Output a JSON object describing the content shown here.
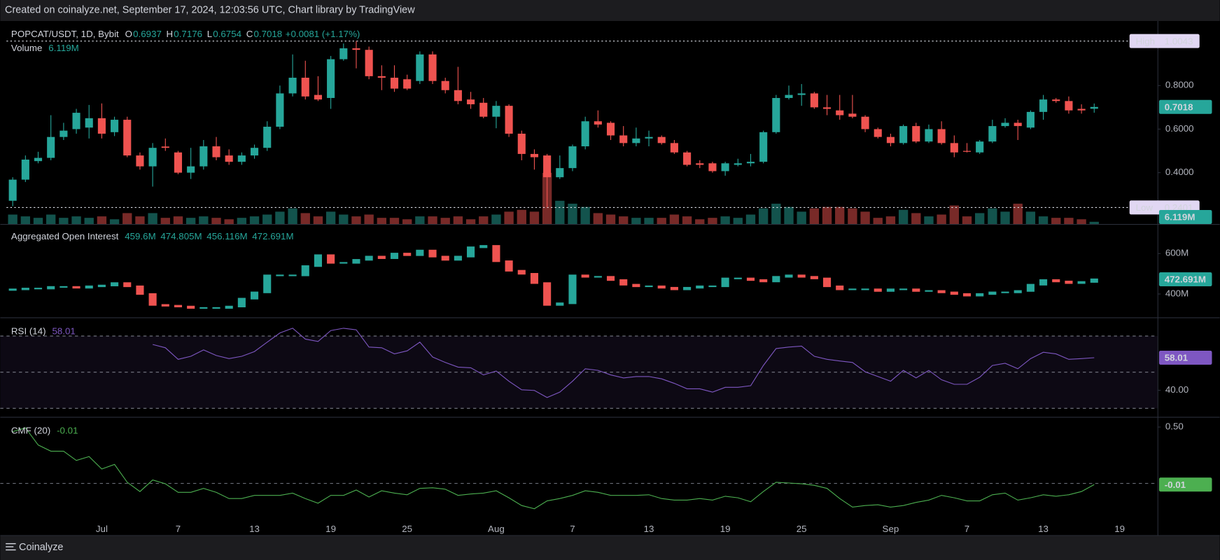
{
  "header": {
    "text": "Created on coinalyze.net, September 17, 2024, 12:03:56 UTC, Chart library by TradingView"
  },
  "footer": {
    "text": "Coinalyze"
  },
  "chart_data": [
    {
      "type": "candlestick",
      "title": "POPCAT/USDT, 1D, Bybit",
      "ohlc_letters": [
        "O",
        "H",
        "L",
        "C"
      ],
      "change_label": "+0.0081 (+1.17%)",
      "open": [
        0.271,
        0.368,
        0.453,
        0.468,
        0.564,
        0.6,
        0.607,
        0.65,
        0.586,
        0.643,
        0.479,
        0.429,
        0.52,
        0.493,
        0.4,
        0.429,
        0.521,
        0.479,
        0.45,
        0.479,
        0.514,
        0.611,
        0.764,
        0.836,
        0.757,
        0.743,
        0.921,
        0.971,
        0.964,
        0.843,
        0.836,
        0.829,
        0.821,
        0.943,
        0.821,
        0.779,
        0.736,
        0.721,
        0.657,
        0.707,
        0.579,
        0.486,
        0.479,
        0.379,
        0.421,
        0.521,
        0.636,
        0.629,
        0.571,
        0.536,
        0.557,
        0.564,
        0.536,
        0.493,
        0.443,
        0.443,
        0.407,
        0.436,
        0.443,
        0.45,
        0.586,
        0.743,
        0.757,
        0.764,
        0.7,
        0.686,
        0.671,
        0.657,
        0.6,
        0.564,
        0.536,
        0.614,
        0.543,
        0.6,
        0.536,
        0.5,
        0.493,
        0.543,
        0.614,
        0.629,
        0.607,
        0.679,
        0.736,
        0.729,
        0.693,
        0.6937
      ],
      "high": [
        0.379,
        0.479,
        0.496,
        0.664,
        0.629,
        0.693,
        0.711,
        0.718,
        0.657,
        0.657,
        0.493,
        0.536,
        0.557,
        0.5,
        0.514,
        0.55,
        0.564,
        0.507,
        0.493,
        0.529,
        0.636,
        0.8,
        0.943,
        0.914,
        0.843,
        0.936,
        0.993,
        1.0043,
        0.979,
        0.893,
        0.893,
        0.85,
        0.957,
        0.957,
        0.836,
        0.886,
        0.771,
        0.743,
        0.729,
        0.714,
        0.593,
        0.507,
        0.486,
        0.479,
        0.529,
        0.657,
        0.686,
        0.636,
        0.614,
        0.607,
        0.593,
        0.571,
        0.55,
        0.5,
        0.457,
        0.45,
        0.45,
        0.464,
        0.486,
        0.593,
        0.757,
        0.8,
        0.807,
        0.771,
        0.757,
        0.757,
        0.757,
        0.664,
        0.607,
        0.579,
        0.621,
        0.629,
        0.621,
        0.636,
        0.571,
        0.536,
        0.55,
        0.643,
        0.65,
        0.643,
        0.686,
        0.757,
        0.743,
        0.75,
        0.714,
        0.7176
      ],
      "low": [
        0.246,
        0.357,
        0.443,
        0.457,
        0.55,
        0.579,
        0.557,
        0.557,
        0.568,
        0.471,
        0.414,
        0.336,
        0.5,
        0.393,
        0.371,
        0.414,
        0.457,
        0.436,
        0.436,
        0.464,
        0.5,
        0.6,
        0.75,
        0.736,
        0.729,
        0.693,
        0.914,
        0.879,
        0.829,
        0.779,
        0.771,
        0.779,
        0.807,
        0.807,
        0.764,
        0.714,
        0.693,
        0.65,
        0.604,
        0.564,
        0.457,
        0.414,
        0.2401,
        0.371,
        0.407,
        0.507,
        0.607,
        0.55,
        0.521,
        0.521,
        0.521,
        0.529,
        0.486,
        0.429,
        0.421,
        0.4,
        0.386,
        0.429,
        0.429,
        0.443,
        0.579,
        0.736,
        0.707,
        0.693,
        0.664,
        0.643,
        0.65,
        0.586,
        0.557,
        0.521,
        0.529,
        0.536,
        0.536,
        0.529,
        0.471,
        0.493,
        0.486,
        0.536,
        0.607,
        0.55,
        0.6,
        0.643,
        0.721,
        0.671,
        0.671,
        0.6754
      ],
      "close": [
        0.368,
        0.46,
        0.468,
        0.564,
        0.593,
        0.675,
        0.65,
        0.579,
        0.643,
        0.479,
        0.429,
        0.514,
        0.514,
        0.4,
        0.429,
        0.521,
        0.471,
        0.45,
        0.479,
        0.514,
        0.611,
        0.764,
        0.836,
        0.75,
        0.736,
        0.921,
        0.971,
        0.964,
        0.843,
        0.836,
        0.786,
        0.786,
        0.943,
        0.821,
        0.779,
        0.729,
        0.714,
        0.657,
        0.707,
        0.579,
        0.486,
        0.471,
        0.379,
        0.421,
        0.521,
        0.636,
        0.621,
        0.571,
        0.536,
        0.557,
        0.564,
        0.536,
        0.493,
        0.436,
        0.436,
        0.407,
        0.443,
        0.443,
        0.45,
        0.586,
        0.743,
        0.757,
        0.764,
        0.7,
        0.693,
        0.664,
        0.657,
        0.6,
        0.564,
        0.536,
        0.614,
        0.543,
        0.6,
        0.536,
        0.493,
        0.496,
        0.543,
        0.614,
        0.629,
        0.614,
        0.679,
        0.736,
        0.729,
        0.686,
        0.686,
        0.7018
      ],
      "ylim": [
        0.1643,
        1.0929
      ],
      "yticks": [
        {
          "value": 0.8,
          "label": "0.8000"
        },
        {
          "value": 0.6,
          "label": "0.6000"
        },
        {
          "value": 0.4,
          "label": "0.4000"
        }
      ],
      "high_marker": {
        "label": "High",
        "value": 1.0043
      },
      "low_marker": {
        "label": "Low",
        "value": 0.2401
      },
      "up_color": "#26a69a",
      "down_color": "#ef5350",
      "xticks": [
        {
          "value": 7,
          "label": "Jul"
        },
        {
          "value": 13,
          "label": "7"
        },
        {
          "value": 19,
          "label": "13"
        },
        {
          "value": 25,
          "label": "19"
        },
        {
          "value": 31,
          "label": "25"
        },
        {
          "value": 38,
          "label": "Aug"
        },
        {
          "value": 44,
          "label": "7"
        },
        {
          "value": 50,
          "label": "13"
        },
        {
          "value": 56,
          "label": "19"
        },
        {
          "value": 62,
          "label": "25"
        },
        {
          "value": 69,
          "label": "Sep"
        },
        {
          "value": 75,
          "label": "7"
        },
        {
          "value": 81,
          "label": "13"
        },
        {
          "value": 87,
          "label": "19"
        }
      ],
      "volume": {
        "title": "Volume",
        "last_label": "6.119M",
        "vlim": [
          0,
          150
        ],
        "values": [
          26,
          21,
          17,
          26,
          17,
          21,
          17,
          21,
          13,
          30,
          21,
          30,
          17,
          21,
          17,
          21,
          17,
          13,
          17,
          21,
          26,
          34,
          43,
          30,
          21,
          34,
          26,
          21,
          26,
          17,
          17,
          13,
          21,
          21,
          17,
          21,
          13,
          21,
          26,
          34,
          39,
          34,
          141,
          64,
          56,
          47,
          30,
          26,
          21,
          17,
          17,
          17,
          26,
          21,
          13,
          17,
          21,
          17,
          26,
          43,
          56,
          47,
          34,
          43,
          47,
          47,
          43,
          34,
          17,
          21,
          39,
          30,
          21,
          26,
          51,
          21,
          30,
          43,
          34,
          56,
          34,
          21,
          17,
          17,
          13,
          6.119
        ]
      }
    },
    {
      "type": "oi-candlestick",
      "title": "Aggregated Open Interest",
      "open": [
        420,
        423,
        427,
        427,
        435,
        435,
        431,
        438,
        442,
        454,
        438,
        400,
        346,
        342,
        338,
        331,
        331,
        331,
        338,
        377,
        408,
        492,
        492,
        492,
        538,
        592,
        554,
        554,
        569,
        585,
        577,
        600,
        592,
        615,
        585,
        569,
        585,
        631,
        638,
        562,
        515,
        500,
        454,
        346,
        354,
        492,
        485,
        485,
        469,
        446,
        438,
        438,
        431,
        423,
        431,
        438,
        438,
        477,
        477,
        469,
        462,
        485,
        492,
        485,
        477,
        438,
        423,
        423,
        423,
        415,
        423,
        423,
        415,
        415,
        408,
        400,
        392,
        400,
        408,
        408,
        415,
        446,
        469,
        462,
        454,
        459.6
      ],
      "close": [
        423,
        427,
        427,
        435,
        435,
        431,
        438,
        442,
        454,
        438,
        400,
        346,
        342,
        338,
        331,
        331,
        331,
        338,
        377,
        408,
        492,
        492,
        492,
        538,
        592,
        554,
        554,
        569,
        585,
        577,
        600,
        592,
        615,
        585,
        569,
        585,
        631,
        638,
        562,
        515,
        500,
        454,
        346,
        354,
        492,
        485,
        485,
        469,
        446,
        438,
        438,
        431,
        423,
        431,
        438,
        438,
        477,
        477,
        469,
        462,
        485,
        492,
        485,
        477,
        438,
        423,
        423,
        423,
        415,
        423,
        423,
        415,
        415,
        408,
        400,
        392,
        400,
        408,
        408,
        415,
        446,
        469,
        462,
        454,
        459.6,
        472.691
      ],
      "legend": [
        {
          "value": 459.6,
          "label": "459.6M"
        },
        {
          "value": 474.805,
          "label": "474.805M"
        },
        {
          "value": 456.116,
          "label": "456.116M"
        },
        {
          "value": 472.691,
          "label": "472.691M"
        }
      ],
      "last_tag": {
        "value": 472.691,
        "label": "472.691M"
      },
      "ylim": [
        284.6,
        742.3
      ],
      "yticks": [
        {
          "value": 600,
          "label": "600M"
        },
        {
          "value": 400,
          "label": "400M"
        }
      ]
    },
    {
      "type": "line",
      "title": "RSI (14)",
      "color": "#7e57c2",
      "values": [
        null,
        null,
        null,
        null,
        null,
        null,
        null,
        null,
        null,
        null,
        null,
        65.3,
        63.5,
        57.1,
        58.8,
        62.3,
        59.2,
        57.5,
        58.8,
        61.4,
        66.6,
        71.7,
        74.3,
        68.3,
        67,
        73,
        74.3,
        73.4,
        63.9,
        63.5,
        60.1,
        61.8,
        66.6,
        58.4,
        55.4,
        52.8,
        52.4,
        48.5,
        50.6,
        45,
        40.3,
        39.9,
        36,
        39,
        45,
        51.9,
        51,
        48.5,
        46.8,
        47.6,
        47.6,
        46.3,
        43.8,
        40.8,
        40.8,
        39,
        41.6,
        41.6,
        42.5,
        53.7,
        63.1,
        63.9,
        64.4,
        58.8,
        57.1,
        56.2,
        55.4,
        50.2,
        47.6,
        45,
        51,
        46.8,
        51,
        45.8,
        43.3,
        43.3,
        47.2,
        53.7,
        54.9,
        51.9,
        57.5,
        61,
        60.1,
        57.1,
        57.5,
        58.01
      ],
      "ylim": [
        25.27,
        79.9
      ],
      "yticks": [
        {
          "value": 40,
          "label": "40.00"
        }
      ],
      "hlines": [
        70,
        50,
        30
      ],
      "band": [
        30,
        70
      ]
    },
    {
      "type": "line",
      "title": "CMF (20)",
      "color": "#4caf50",
      "values": [
        0.459,
        0.493,
        0.341,
        0.286,
        0.286,
        0.204,
        0.238,
        0.128,
        0.169,
        0.011,
        -0.072,
        0.031,
        -0.003,
        -0.079,
        -0.079,
        -0.044,
        -0.079,
        -0.134,
        -0.134,
        -0.106,
        -0.106,
        -0.106,
        -0.086,
        -0.134,
        -0.175,
        -0.106,
        -0.106,
        -0.058,
        -0.12,
        -0.065,
        -0.086,
        -0.1,
        -0.044,
        -0.038,
        -0.051,
        -0.106,
        -0.093,
        -0.086,
        -0.065,
        -0.127,
        -0.196,
        -0.224,
        -0.155,
        -0.134,
        -0.106,
        -0.065,
        -0.079,
        -0.106,
        -0.106,
        -0.106,
        -0.1,
        -0.134,
        -0.148,
        -0.148,
        -0.134,
        -0.148,
        -0.113,
        -0.127,
        -0.162,
        -0.072,
        0.011,
        0.004,
        -0.003,
        -0.017,
        -0.044,
        -0.134,
        -0.21,
        -0.196,
        -0.189,
        -0.21,
        -0.196,
        -0.168,
        -0.148,
        -0.106,
        -0.127,
        -0.155,
        -0.155,
        -0.1,
        -0.086,
        -0.148,
        -0.127,
        -0.1,
        -0.113,
        -0.1,
        -0.072,
        -0.01
      ],
      "ylim": [
        -0.458,
        0.583
      ],
      "yticks": [
        {
          "value": 0.5,
          "label": "0.50"
        }
      ],
      "hlines": [
        0
      ]
    }
  ]
}
